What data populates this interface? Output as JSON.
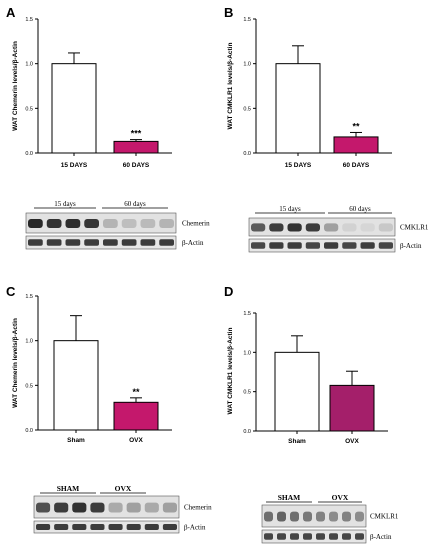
{
  "colors": {
    "bar_white": "#ffffff",
    "bar_magenta": "#c4186c",
    "bar_dark_magenta": "#a41f6a",
    "axis": "#000000"
  },
  "panels": [
    {
      "letter": "A",
      "chart_data": {
        "type": "bar",
        "ylabel": "WAT Chemerin levels/β-Actin",
        "categories": [
          "15 DAYS",
          "60 DAYS"
        ],
        "values": [
          1.0,
          0.13
        ],
        "errors": [
          0.12,
          0.02
        ],
        "significance": [
          "",
          "***"
        ],
        "bar_colors": [
          "#ffffff",
          "#c4186c"
        ],
        "ylim": [
          0,
          1.5
        ],
        "yticks": [
          "0.0",
          "0.5",
          "1.0",
          "1.5"
        ],
        "grid": false
      },
      "blot": {
        "groups": [
          "15 days",
          "60 days"
        ],
        "protein_label": "Chemerin",
        "loading_label": "β-Actin",
        "protein_intensity": [
          0.95,
          0.9,
          0.92,
          0.88,
          0.25,
          0.2,
          0.22,
          0.25
        ],
        "loading_intensity": [
          0.85,
          0.85,
          0.85,
          0.85,
          0.85,
          0.85,
          0.85,
          0.85
        ]
      }
    },
    {
      "letter": "B",
      "chart_data": {
        "type": "bar",
        "ylabel": "WAT CMKLR1 levels/β-Actin",
        "categories": [
          "15 DAYS",
          "60 DAYS"
        ],
        "values": [
          1.0,
          0.18
        ],
        "errors": [
          0.2,
          0.05
        ],
        "significance": [
          "",
          "**"
        ],
        "bar_colors": [
          "#ffffff",
          "#c4186c"
        ],
        "ylim": [
          0,
          1.5
        ],
        "yticks": [
          "0.0",
          "0.5",
          "1.0",
          "1.5"
        ],
        "grid": false
      },
      "blot": {
        "groups": [
          "15 days",
          "60 days"
        ],
        "protein_label": "CMKLR1",
        "loading_label": "β-Actin",
        "protein_intensity": [
          0.7,
          0.85,
          0.9,
          0.85,
          0.35,
          0.1,
          0.08,
          0.15
        ],
        "loading_intensity": [
          0.8,
          0.85,
          0.85,
          0.8,
          0.85,
          0.8,
          0.85,
          0.8
        ]
      }
    },
    {
      "letter": "C",
      "chart_data": {
        "type": "bar",
        "ylabel": "WAT Chemerin levels/β-Actin",
        "categories": [
          "Sham",
          "OVX"
        ],
        "values": [
          1.0,
          0.31
        ],
        "errors": [
          0.28,
          0.05
        ],
        "significance": [
          "",
          "**"
        ],
        "bar_colors": [
          "#ffffff",
          "#c4186c"
        ],
        "ylim": [
          0,
          1.5
        ],
        "yticks": [
          "0.0",
          "0.5",
          "1.0",
          "1.5"
        ],
        "grid": false
      },
      "blot": {
        "groups": [
          "SHAM",
          "OVX"
        ],
        "protein_label": "Chemerin",
        "loading_label": "β-Actin",
        "protein_intensity": [
          0.75,
          0.85,
          0.9,
          0.85,
          0.3,
          0.35,
          0.3,
          0.35
        ],
        "loading_intensity": [
          0.85,
          0.85,
          0.85,
          0.85,
          0.85,
          0.85,
          0.85,
          0.85
        ]
      }
    },
    {
      "letter": "D",
      "chart_data": {
        "type": "bar",
        "ylabel": "WAT CMKLR1 levels/β-Actin",
        "categories": [
          "Sham",
          "OVX"
        ],
        "values": [
          1.0,
          0.58
        ],
        "errors": [
          0.21,
          0.18
        ],
        "significance": [
          "",
          ""
        ],
        "bar_colors": [
          "#ffffff",
          "#a41f6a"
        ],
        "ylim": [
          0,
          1.5
        ],
        "yticks": [
          "0.0",
          "0.5",
          "1.0",
          "1.5"
        ],
        "grid": false
      },
      "blot": {
        "groups": [
          "SHAM",
          "OVX"
        ],
        "protein_label": "CMKLR1",
        "loading_label": "β-Actin",
        "protein_intensity": [
          0.6,
          0.65,
          0.6,
          0.55,
          0.5,
          0.45,
          0.5,
          0.45
        ],
        "loading_intensity": [
          0.8,
          0.8,
          0.8,
          0.8,
          0.8,
          0.8,
          0.8,
          0.8
        ]
      }
    }
  ]
}
